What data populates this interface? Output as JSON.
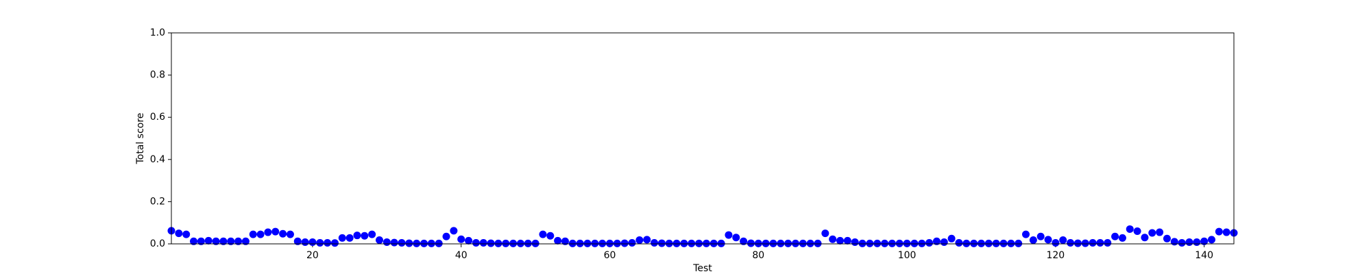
{
  "chart_data": {
    "type": "scatter",
    "xlabel": "Test",
    "ylabel": "Total score",
    "color": "#0000ff",
    "x": [
      1,
      2,
      3,
      4,
      5,
      6,
      7,
      8,
      9,
      10,
      11,
      12,
      13,
      14,
      15,
      16,
      17,
      18,
      19,
      20,
      21,
      22,
      23,
      24,
      25,
      26,
      27,
      28,
      29,
      30,
      31,
      32,
      33,
      34,
      35,
      36,
      37,
      38,
      39,
      40,
      41,
      42,
      43,
      44,
      45,
      46,
      47,
      48,
      49,
      50,
      51,
      52,
      53,
      54,
      55,
      56,
      57,
      58,
      59,
      60,
      61,
      62,
      63,
      64,
      65,
      66,
      67,
      68,
      69,
      70,
      71,
      72,
      73,
      74,
      75,
      76,
      77,
      78,
      79,
      80,
      81,
      82,
      83,
      84,
      85,
      86,
      87,
      88,
      89,
      90,
      91,
      92,
      93,
      94,
      95,
      96,
      97,
      98,
      99,
      100,
      101,
      102,
      103,
      104,
      105,
      106,
      107,
      108,
      109,
      110,
      111,
      112,
      113,
      114,
      115,
      116,
      117,
      118,
      119,
      120,
      121,
      122,
      123,
      124,
      125,
      126,
      127,
      128,
      129,
      130,
      131,
      132,
      133,
      134,
      135,
      136,
      137,
      138,
      139,
      140,
      141,
      142,
      143,
      144
    ],
    "values": [
      0.062,
      0.05,
      0.045,
      0.012,
      0.012,
      0.015,
      0.012,
      0.012,
      0.012,
      0.012,
      0.012,
      0.045,
      0.045,
      0.055,
      0.058,
      0.048,
      0.045,
      0.012,
      0.008,
      0.008,
      0.005,
      0.005,
      0.004,
      0.028,
      0.028,
      0.04,
      0.038,
      0.045,
      0.018,
      0.008,
      0.006,
      0.005,
      0.003,
      0.002,
      0.002,
      0.002,
      0.002,
      0.035,
      0.062,
      0.022,
      0.015,
      0.005,
      0.005,
      0.003,
      0.002,
      0.002,
      0.002,
      0.002,
      0.002,
      0.002,
      0.045,
      0.038,
      0.015,
      0.012,
      0.002,
      0.002,
      0.002,
      0.002,
      0.002,
      0.002,
      0.002,
      0.003,
      0.005,
      0.018,
      0.02,
      0.005,
      0.003,
      0.002,
      0.002,
      0.002,
      0.002,
      0.002,
      0.002,
      0.002,
      0.002,
      0.042,
      0.03,
      0.012,
      0.003,
      0.002,
      0.002,
      0.002,
      0.002,
      0.002,
      0.002,
      0.002,
      0.002,
      0.002,
      0.05,
      0.022,
      0.015,
      0.015,
      0.008,
      0.002,
      0.002,
      0.002,
      0.002,
      0.002,
      0.002,
      0.002,
      0.002,
      0.002,
      0.005,
      0.012,
      0.008,
      0.025,
      0.005,
      0.002,
      0.002,
      0.002,
      0.002,
      0.002,
      0.002,
      0.002,
      0.002,
      0.045,
      0.018,
      0.035,
      0.02,
      0.005,
      0.018,
      0.005,
      0.003,
      0.003,
      0.005,
      0.005,
      0.005,
      0.035,
      0.028,
      0.07,
      0.06,
      0.03,
      0.052,
      0.055,
      0.025,
      0.01,
      0.005,
      0.008,
      0.008,
      0.012,
      0.02,
      0.058,
      0.055,
      0.052
    ],
    "xlim": [
      1,
      144
    ],
    "xticks": [
      20,
      40,
      60,
      80,
      100,
      120,
      140
    ],
    "ylim": [
      0,
      1
    ],
    "yticks": [
      {
        "value": 0,
        "label": "0.0"
      },
      0.2,
      0.4,
      0.6,
      0.8,
      {
        "value": 1,
        "label": "1.0"
      }
    ],
    "grid": false
  }
}
